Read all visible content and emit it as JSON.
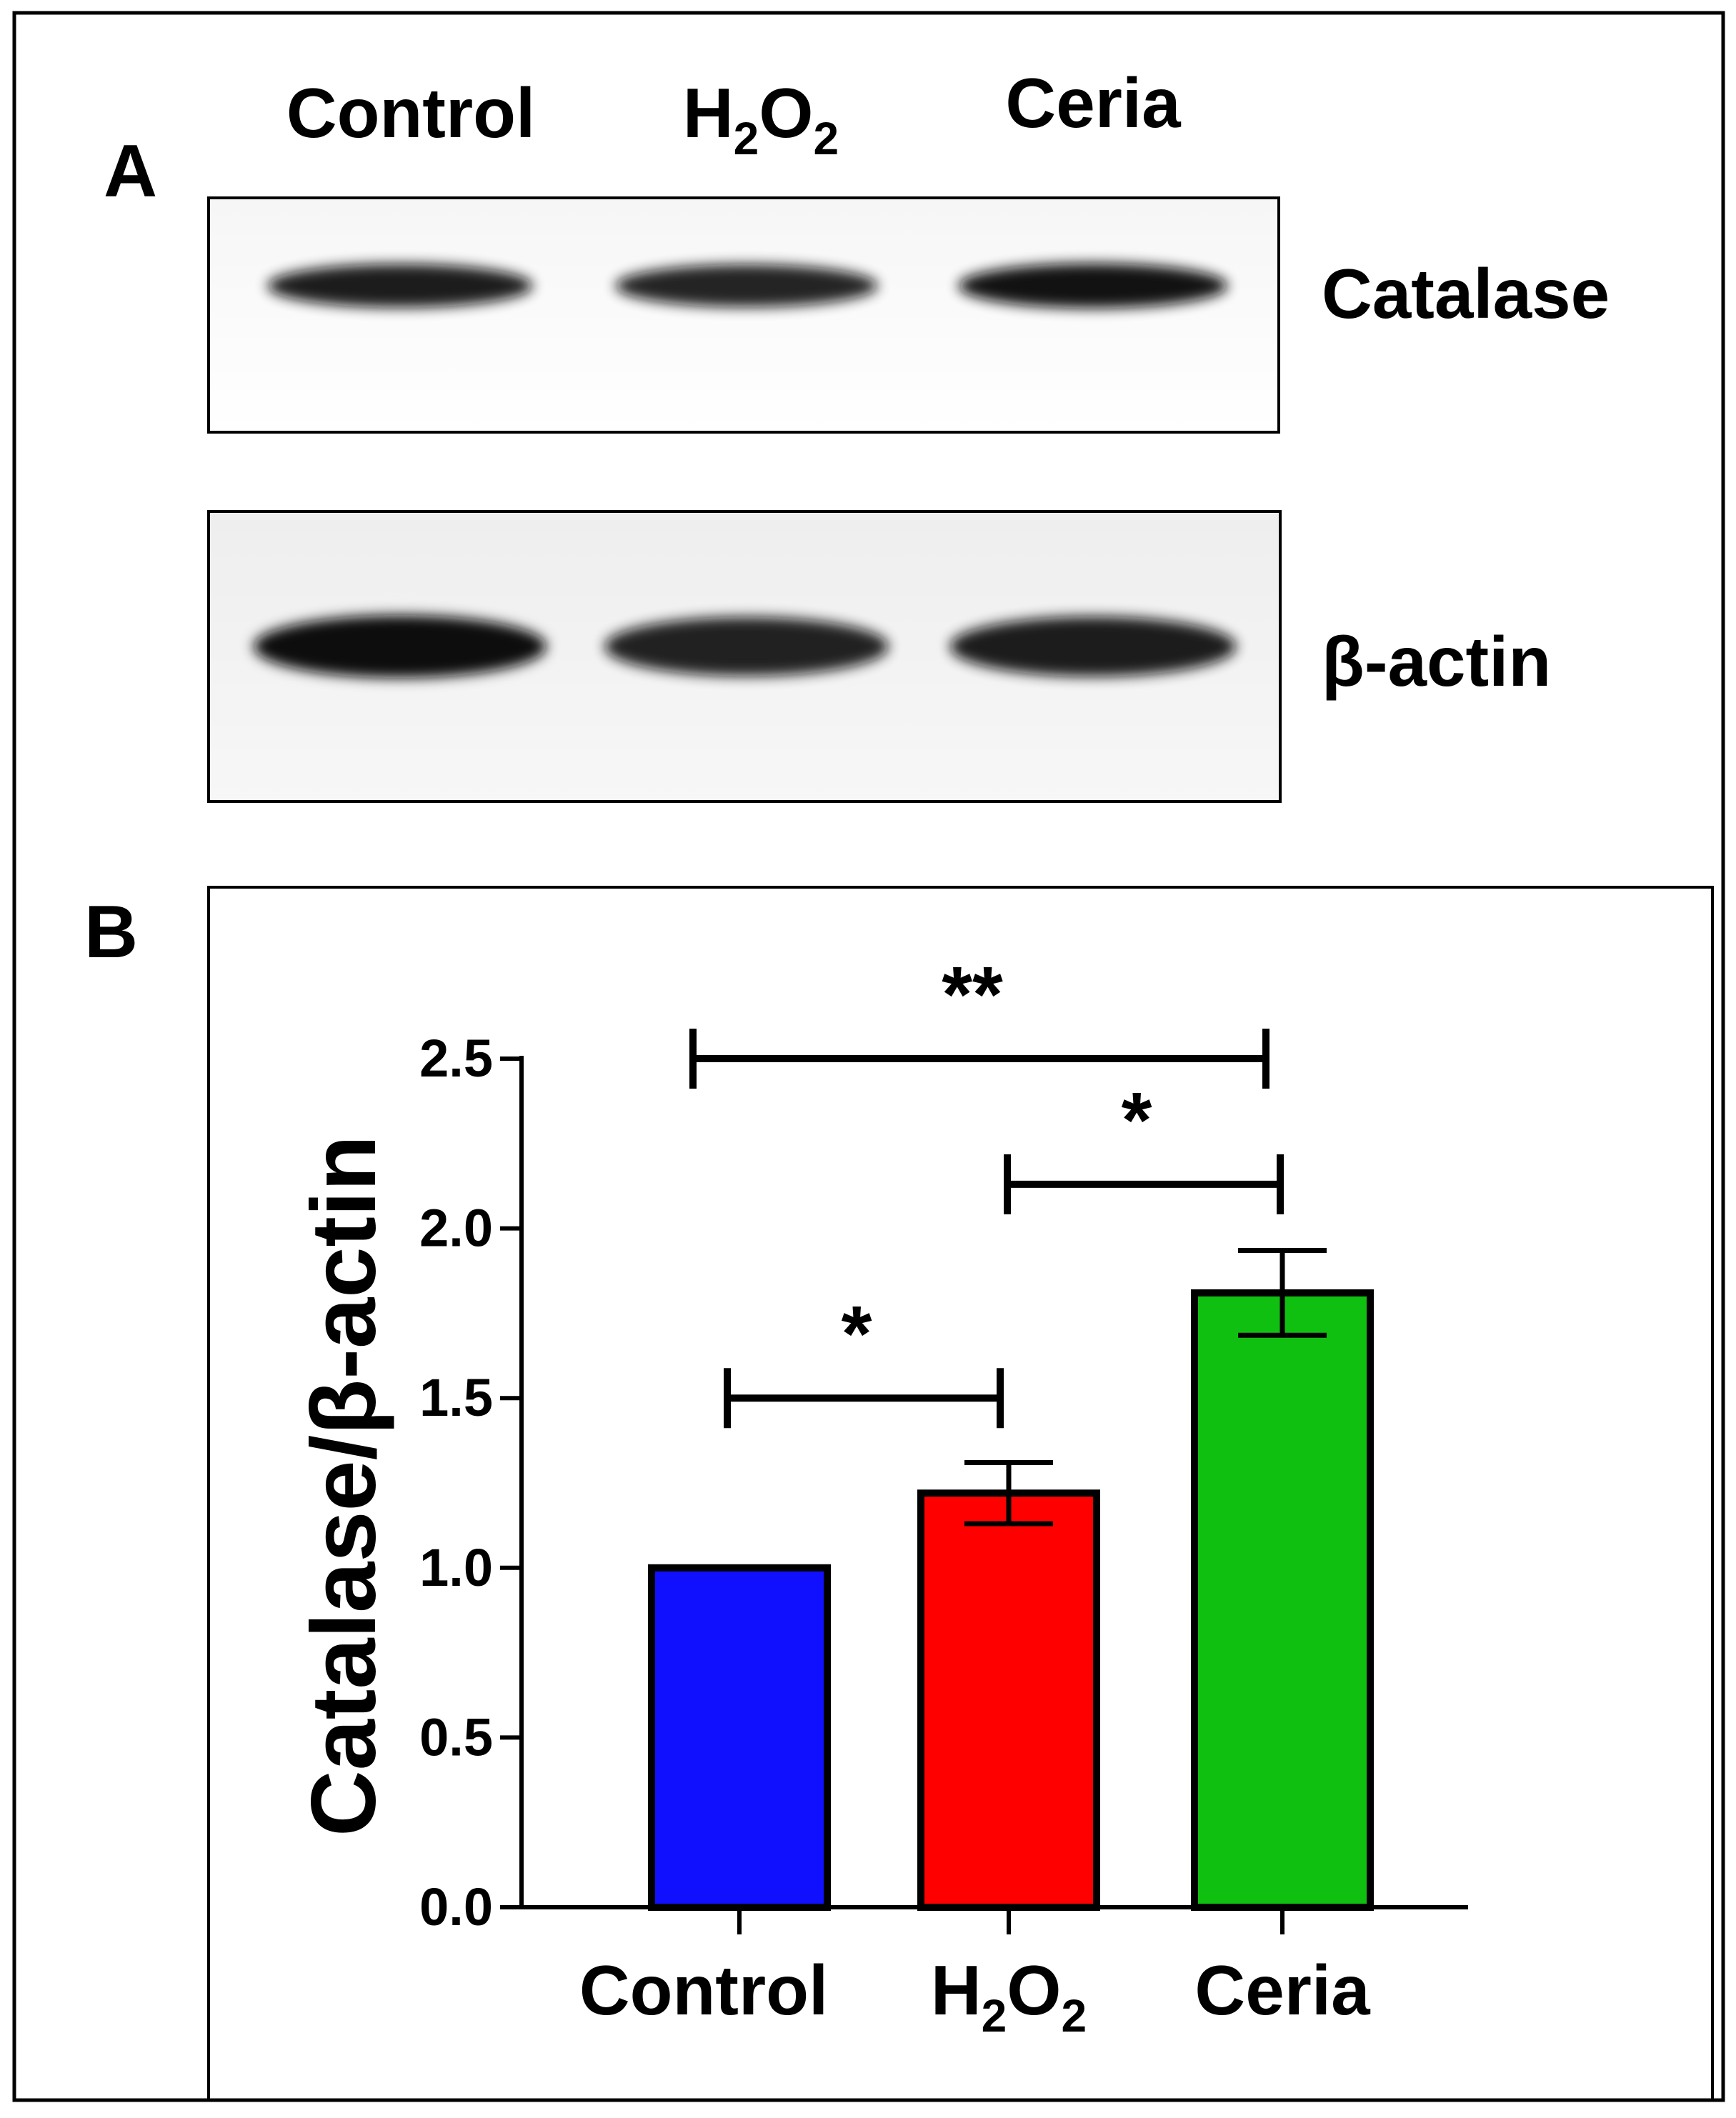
{
  "panel_a": {
    "label": "A",
    "lanes": [
      {
        "text": "Control"
      },
      {
        "text": "H",
        "sub": "2",
        "text2": "O",
        "sub2": "2"
      },
      {
        "text": "Ceria"
      }
    ],
    "blots": [
      {
        "name": "Catalase",
        "band_intensity": [
          0.85,
          0.78,
          0.95
        ]
      },
      {
        "name": "β-actin",
        "band_intensity": [
          1.0,
          0.8,
          0.85
        ]
      }
    ],
    "band_color": "#111111"
  },
  "panel_b": {
    "label": "B"
  },
  "chart_data": {
    "type": "bar",
    "categories": [
      {
        "text": "Control"
      },
      {
        "text": "H",
        "sub": "2",
        "text2": "O",
        "sub2": "2"
      },
      {
        "text": "Ceria"
      }
    ],
    "values": [
      1.0,
      1.22,
      1.81
    ],
    "errors": [
      0.0,
      0.09,
      0.125
    ],
    "colors": [
      "#1010ff",
      "#ff0000",
      "#10c010"
    ],
    "ylabel": "Catalase/β-actin",
    "xlabel": "",
    "ylim": [
      0,
      2.5
    ],
    "yticks": [
      "0.0",
      "0.5",
      "1.0",
      "1.5",
      "2.0",
      "2.5"
    ],
    "significance": [
      {
        "from": 0,
        "to": 2,
        "label": "**",
        "level": 2.5
      },
      {
        "from": 1,
        "to": 2,
        "label": "*",
        "level": 2.13
      },
      {
        "from": 0,
        "to": 1,
        "label": "*",
        "level": 1.5
      }
    ]
  }
}
